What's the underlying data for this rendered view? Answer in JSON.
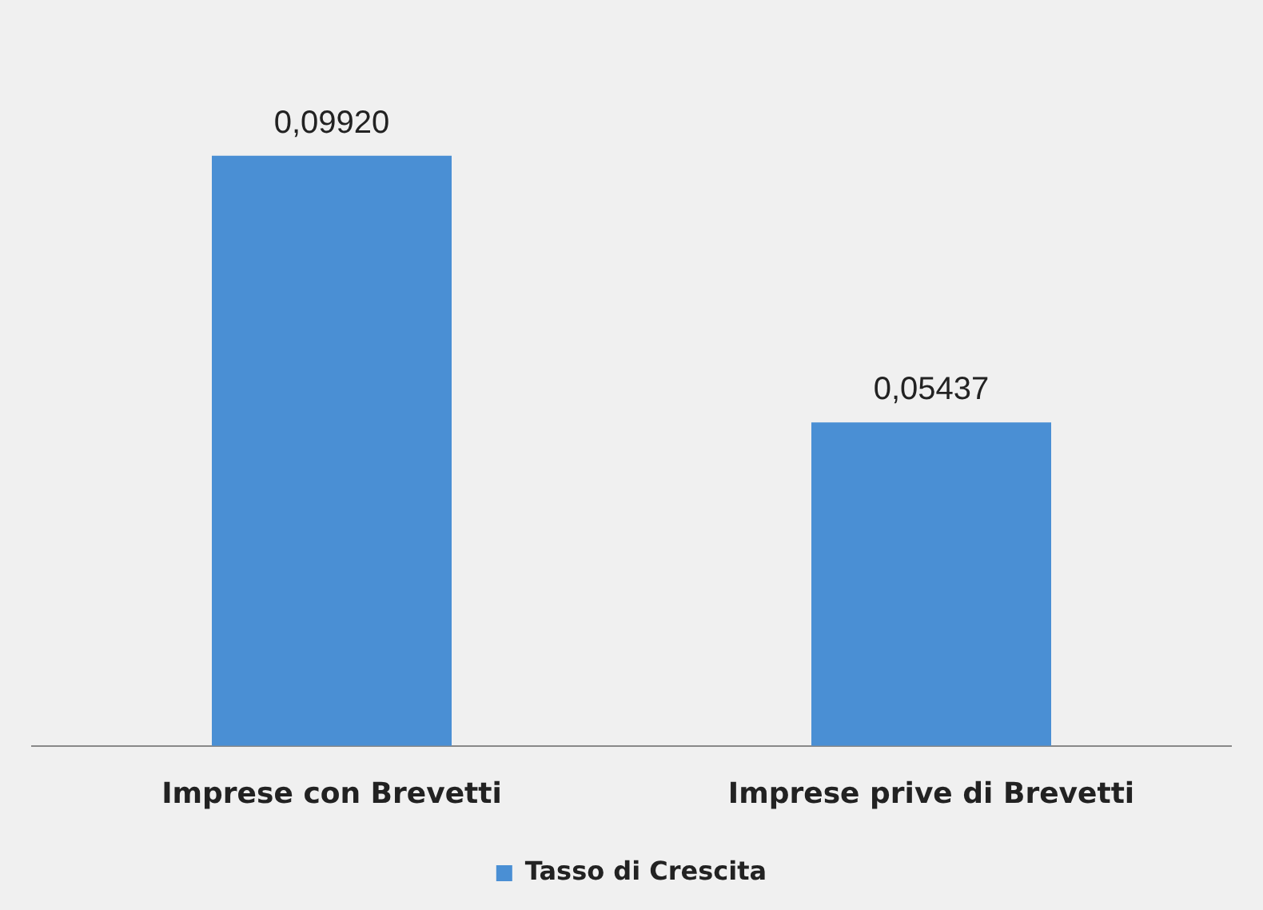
{
  "chart_data": {
    "type": "bar",
    "categories": [
      "Imprese con Brevetti",
      "Imprese prive di Brevetti"
    ],
    "series": [
      {
        "name": "Tasso di Crescita",
        "color": "#4a8fd4",
        "values": [
          0.0992,
          0.05437
        ],
        "value_labels": [
          "0,09920",
          "0,05437"
        ]
      }
    ],
    "legend": "bottom",
    "grid": false
  }
}
